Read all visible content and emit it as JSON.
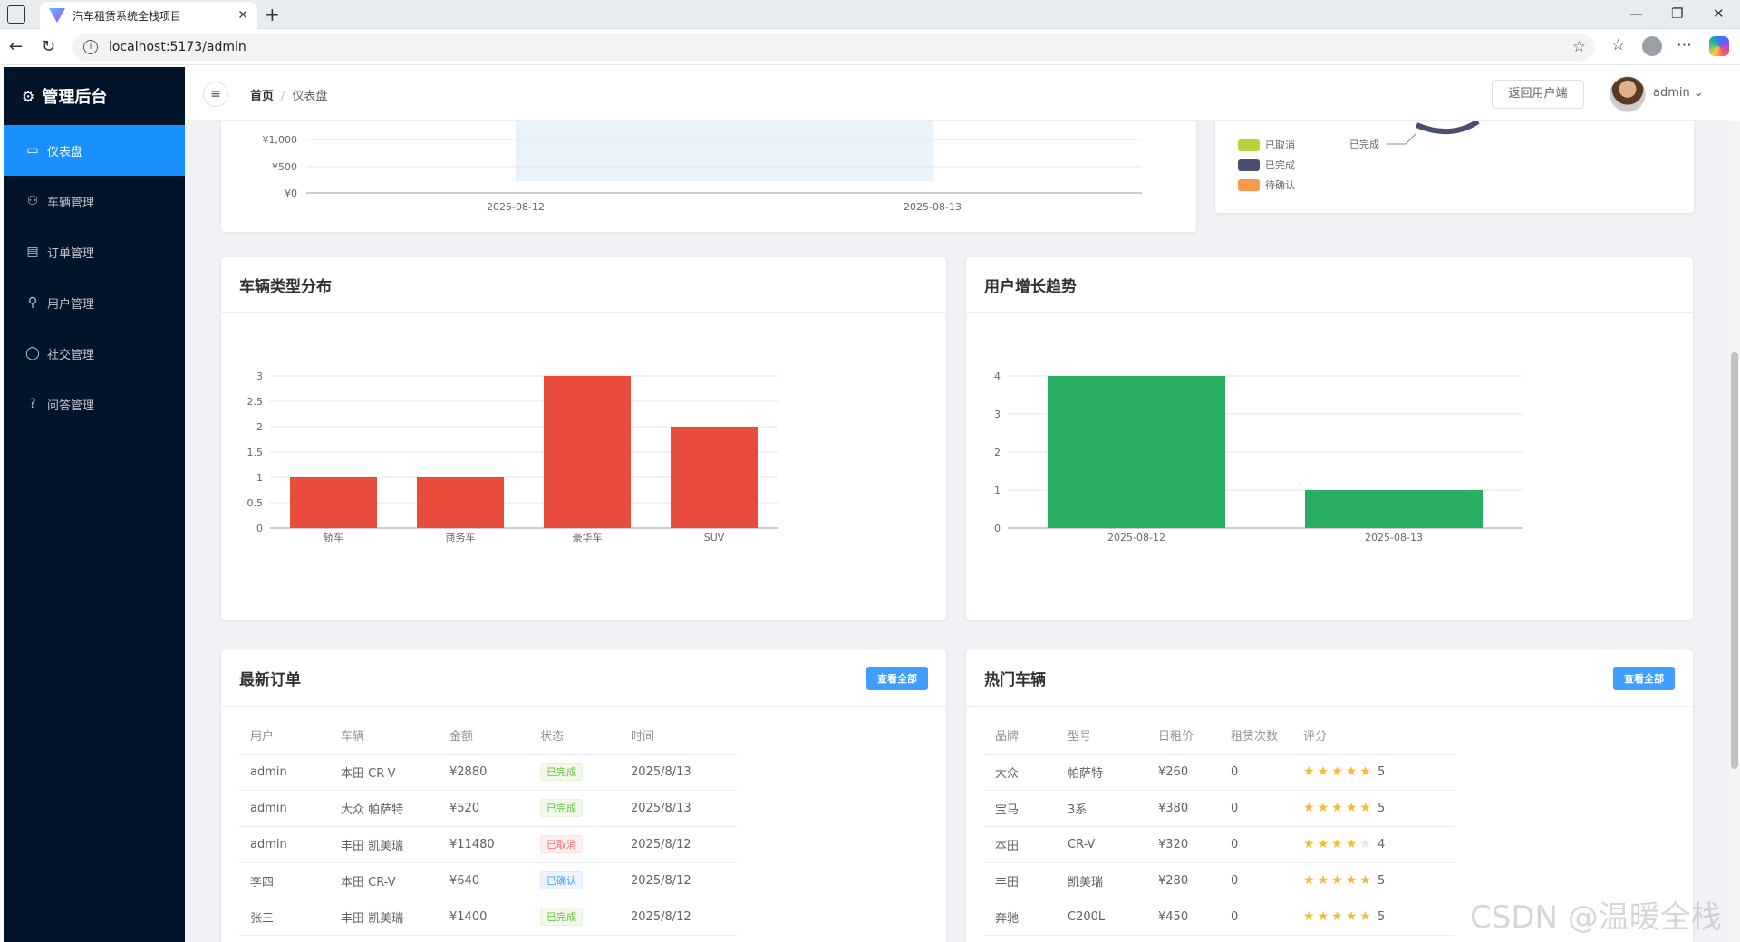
{
  "browser": {
    "tab_title": "汽车租赁系统全栈项目",
    "url": "localhost:5173/admin"
  },
  "sidebar": {
    "brand": "管理后台",
    "items": [
      {
        "label": "仪表盘",
        "icon": "monitor-icon"
      },
      {
        "label": "车辆管理",
        "icon": "car-icon"
      },
      {
        "label": "订单管理",
        "icon": "document-icon"
      },
      {
        "label": "用户管理",
        "icon": "user-icon"
      },
      {
        "label": "社交管理",
        "icon": "chat-icon"
      },
      {
        "label": "问答管理",
        "icon": "question-icon"
      }
    ]
  },
  "header": {
    "breadcrumb_home": "首页",
    "breadcrumb_current": "仪表盘",
    "back_button": "返回用户端",
    "username": "admin"
  },
  "revenue_chart": {
    "y_ticks": [
      "¥1,000",
      "¥500",
      "¥0"
    ],
    "x_ticks": [
      "2025-08-12",
      "2025-08-13"
    ]
  },
  "status_legend": {
    "items": [
      {
        "label": "已取消",
        "color": "#b4d63a"
      },
      {
        "label": "已完成",
        "color": "#4a4f6e"
      },
      {
        "label": "待确认",
        "color": "#f89a4a"
      }
    ],
    "pie_label": "已完成"
  },
  "vehicle_types": {
    "title": "车辆类型分布"
  },
  "user_growth": {
    "title": "用户增长趋势"
  },
  "chart_data": [
    {
      "type": "bar",
      "categories": [
        "轿车",
        "商务车",
        "豪华车",
        "SUV"
      ],
      "values": [
        1,
        1,
        3,
        2
      ],
      "ylim": [
        0,
        3
      ],
      "y_ticks": [
        "0",
        "0.5",
        "1",
        "1.5",
        "2",
        "2.5",
        "3"
      ],
      "color": "#e74c3c"
    },
    {
      "type": "bar",
      "categories": [
        "2025-08-12",
        "2025-08-13"
      ],
      "values": [
        4,
        1
      ],
      "ylim": [
        0,
        4
      ],
      "y_ticks": [
        "0",
        "1",
        "2",
        "3",
        "4"
      ],
      "color": "#27ae60"
    }
  ],
  "recent_orders": {
    "title": "最新订单",
    "view_all": "查看全部",
    "columns": [
      "用户",
      "车辆",
      "金额",
      "状态",
      "时间"
    ],
    "rows": [
      {
        "user": "admin",
        "car": "本田 CR-V",
        "amount": "¥2880",
        "status": "已完成",
        "status_type": "ok",
        "time": "2025/8/13"
      },
      {
        "user": "admin",
        "car": "大众 帕萨特",
        "amount": "¥520",
        "status": "已完成",
        "status_type": "ok",
        "time": "2025/8/13"
      },
      {
        "user": "admin",
        "car": "丰田 凯美瑞",
        "amount": "¥11480",
        "status": "已取消",
        "status_type": "cancel",
        "time": "2025/8/12"
      },
      {
        "user": "李四",
        "car": "本田 CR-V",
        "amount": "¥640",
        "status": "已确认",
        "status_type": "confirm",
        "time": "2025/8/12"
      },
      {
        "user": "张三",
        "car": "丰田 凯美瑞",
        "amount": "¥1400",
        "status": "已完成",
        "status_type": "ok",
        "time": "2025/8/12"
      }
    ]
  },
  "hot_cars": {
    "title": "热门车辆",
    "view_all": "查看全部",
    "columns": [
      "品牌",
      "型号",
      "日租价",
      "租赁次数",
      "评分"
    ],
    "rows": [
      {
        "brand": "大众",
        "model": "帕萨特",
        "price": "¥260",
        "count": "0",
        "rating": 5
      },
      {
        "brand": "宝马",
        "model": "3系",
        "price": "¥380",
        "count": "0",
        "rating": 5
      },
      {
        "brand": "本田",
        "model": "CR-V",
        "price": "¥320",
        "count": "0",
        "rating": 4
      },
      {
        "brand": "丰田",
        "model": "凯美瑞",
        "price": "¥280",
        "count": "0",
        "rating": 5
      },
      {
        "brand": "奔驰",
        "model": "C200L",
        "price": "¥450",
        "count": "0",
        "rating": 5
      }
    ]
  },
  "watermark": "CSDN @温暖全栈"
}
